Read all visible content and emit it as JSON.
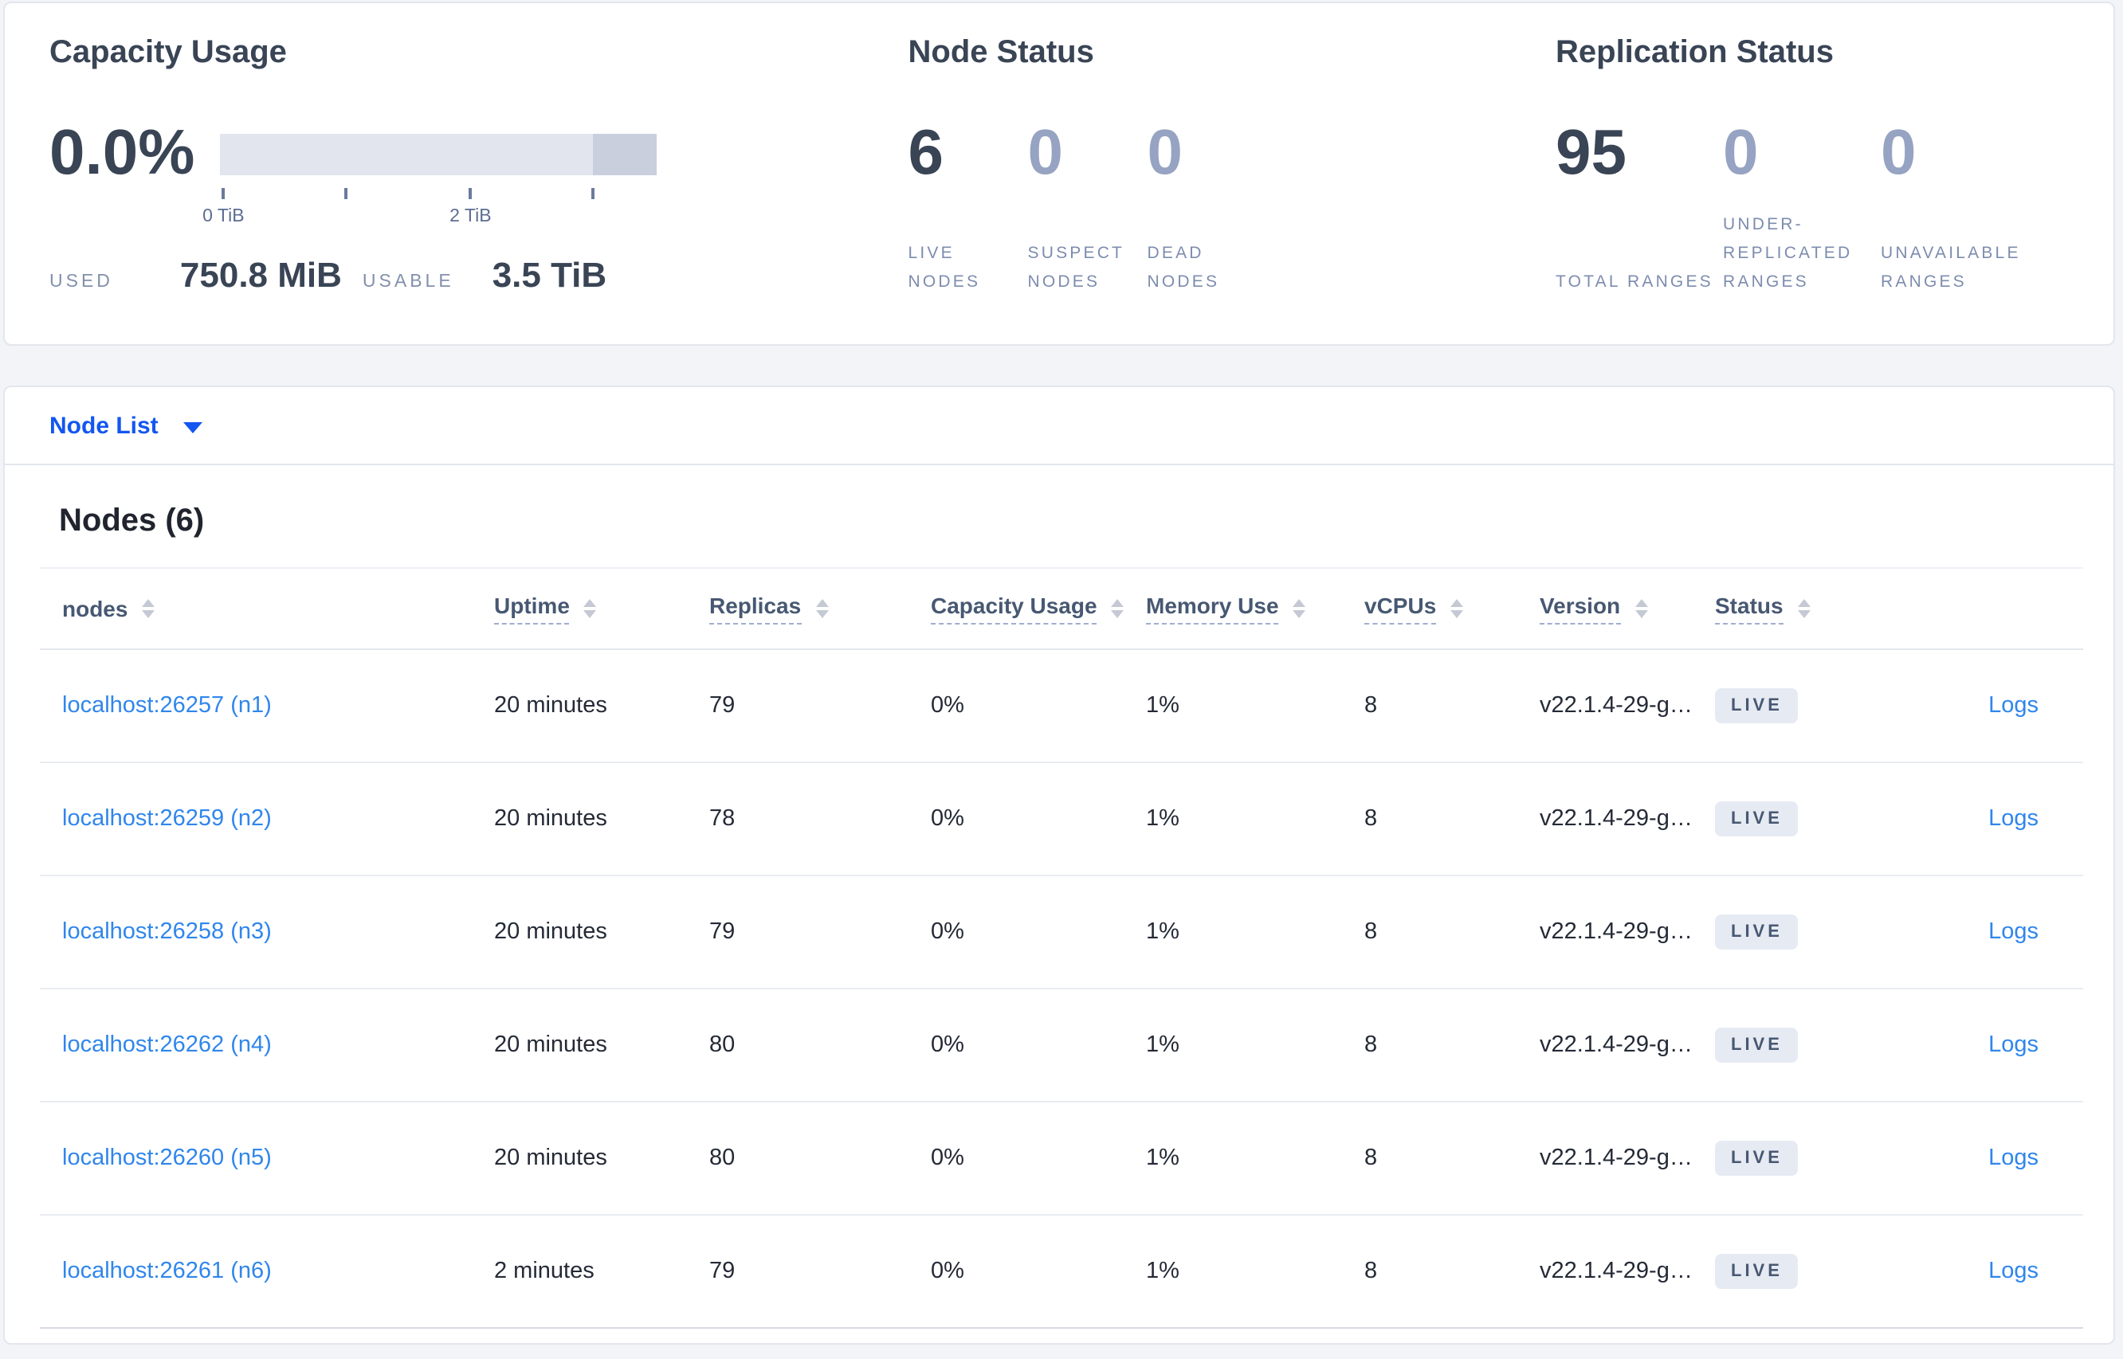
{
  "overview": {
    "capacity": {
      "title": "Capacity Usage",
      "percent": "0.0%",
      "ticks": [
        "0 TiB",
        "2 TiB"
      ],
      "used_label": "USED",
      "used_value": "750.8 MiB",
      "usable_label": "USABLE",
      "usable_value": "3.5 TiB",
      "bar_color": "#e2e5ee",
      "bar_dark_color": "#c9cfdd"
    },
    "node_status": {
      "title": "Node Status",
      "stats": [
        {
          "value": "6",
          "label": "LIVE NODES",
          "muted": false
        },
        {
          "value": "0",
          "label": "SUSPECT NODES",
          "muted": true
        },
        {
          "value": "0",
          "label": "DEAD NODES",
          "muted": true
        }
      ]
    },
    "replication": {
      "title": "Replication Status",
      "stats": [
        {
          "value": "95",
          "label": "TOTAL RANGES",
          "muted": false
        },
        {
          "value": "0",
          "label": "UNDER-REPLICATED RANGES",
          "muted": true
        },
        {
          "value": "0",
          "label": "UNAVAILABLE RANGES",
          "muted": true
        }
      ]
    }
  },
  "node_list": {
    "dropdown_label": "Node List",
    "heading": "Nodes (6)",
    "columns": [
      {
        "label": "nodes",
        "sortable": true,
        "dashed": false
      },
      {
        "label": "Uptime",
        "sortable": true,
        "dashed": true
      },
      {
        "label": "Replicas",
        "sortable": true,
        "dashed": true
      },
      {
        "label": "Capacity Usage",
        "sortable": true,
        "dashed": true
      },
      {
        "label": "Memory Use",
        "sortable": true,
        "dashed": true
      },
      {
        "label": "vCPUs",
        "sortable": true,
        "dashed": true
      },
      {
        "label": "Version",
        "sortable": true,
        "dashed": true
      },
      {
        "label": "Status",
        "sortable": true,
        "dashed": true
      },
      {
        "label": "",
        "sortable": false,
        "dashed": false
      }
    ],
    "rows": [
      {
        "node": "localhost:26257 (n1)",
        "uptime": "20 minutes",
        "replicas": "79",
        "capacity": "0%",
        "memory": "1%",
        "vcpus": "8",
        "version": "v22.1.4-29-g…",
        "status": "LIVE",
        "logs": "Logs"
      },
      {
        "node": "localhost:26259 (n2)",
        "uptime": "20 minutes",
        "replicas": "78",
        "capacity": "0%",
        "memory": "1%",
        "vcpus": "8",
        "version": "v22.1.4-29-g…",
        "status": "LIVE",
        "logs": "Logs"
      },
      {
        "node": "localhost:26258 (n3)",
        "uptime": "20 minutes",
        "replicas": "79",
        "capacity": "0%",
        "memory": "1%",
        "vcpus": "8",
        "version": "v22.1.4-29-g…",
        "status": "LIVE",
        "logs": "Logs"
      },
      {
        "node": "localhost:26262 (n4)",
        "uptime": "20 minutes",
        "replicas": "80",
        "capacity": "0%",
        "memory": "1%",
        "vcpus": "8",
        "version": "v22.1.4-29-g…",
        "status": "LIVE",
        "logs": "Logs"
      },
      {
        "node": "localhost:26260 (n5)",
        "uptime": "20 minutes",
        "replicas": "80",
        "capacity": "0%",
        "memory": "1%",
        "vcpus": "8",
        "version": "v22.1.4-29-g…",
        "status": "LIVE",
        "logs": "Logs"
      },
      {
        "node": "localhost:26261 (n6)",
        "uptime": "2 minutes",
        "replicas": "79",
        "capacity": "0%",
        "memory": "1%",
        "vcpus": "8",
        "version": "v22.1.4-29-g…",
        "status": "LIVE",
        "logs": "Logs"
      }
    ]
  }
}
